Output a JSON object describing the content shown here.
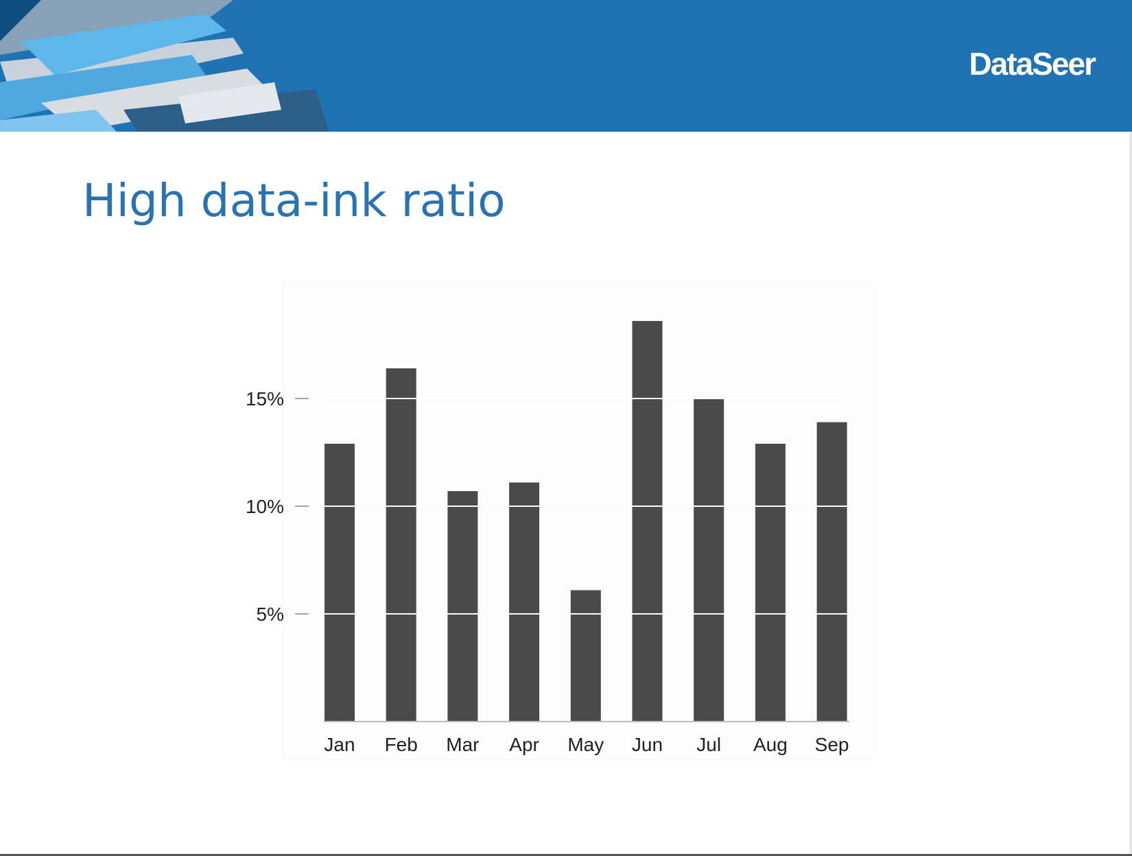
{
  "header": {
    "brand": "DataSeer",
    "bg_color": "#1f73b3"
  },
  "slide": {
    "title": "High data-ink ratio",
    "title_color": "#2a73b2"
  },
  "chart_data": {
    "type": "bar",
    "categories": [
      "Jan",
      "Feb",
      "Mar",
      "Apr",
      "May",
      "Jun",
      "Jul",
      "Aug",
      "Sep"
    ],
    "values": [
      12.9,
      16.4,
      10.7,
      11.1,
      6.1,
      18.6,
      15.0,
      12.9,
      13.9
    ],
    "y_ticks": [
      5,
      10,
      15
    ],
    "y_tick_labels": [
      "5%",
      "10%",
      "15%"
    ],
    "ylim": [
      0,
      20
    ],
    "grid": "white lines drawn through the bars at each y tick",
    "title": "",
    "xlabel": "",
    "ylabel": "",
    "bar_color": "#4a4a4a",
    "axis_color": "#bbbbbb"
  }
}
